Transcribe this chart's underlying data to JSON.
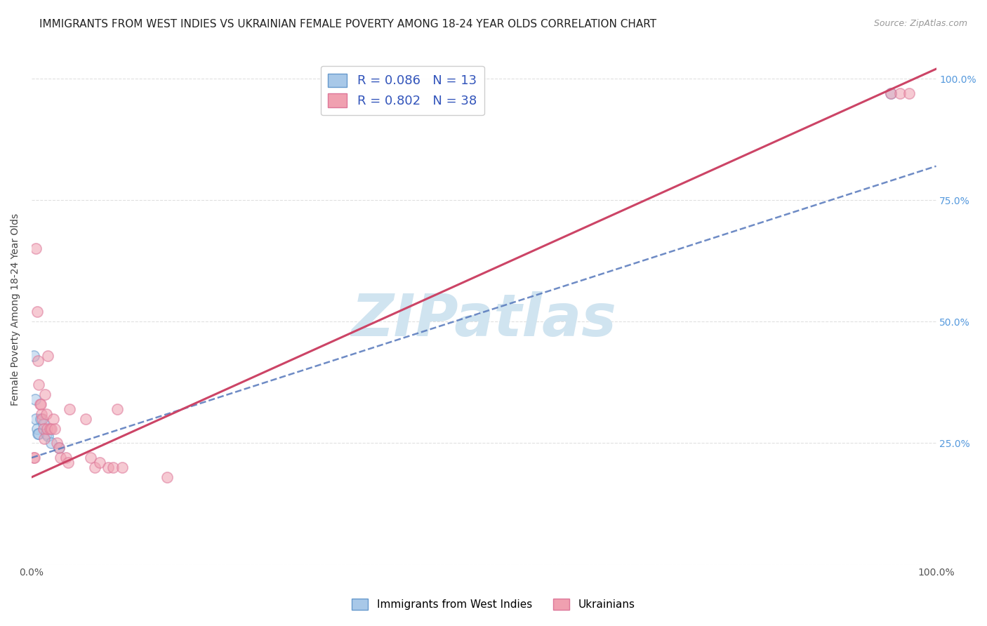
{
  "title": "IMMIGRANTS FROM WEST INDIES VS UKRAINIAN FEMALE POVERTY AMONG 18-24 YEAR OLDS CORRELATION CHART",
  "source": "Source: ZipAtlas.com",
  "ylabel": "Female Poverty Among 18-24 Year Olds",
  "legend_blue_r": "R = 0.086",
  "legend_blue_n": "N = 13",
  "legend_pink_r": "R = 0.802",
  "legend_pink_n": "N = 38",
  "legend_blue_label": "Immigrants from West Indies",
  "legend_pink_label": "Ukrainians",
  "watermark": "ZIPatlas",
  "blue_scatter_x": [
    0.002,
    0.004,
    0.005,
    0.006,
    0.007,
    0.008,
    0.01,
    0.013,
    0.016,
    0.018,
    0.022,
    0.03,
    0.95
  ],
  "blue_scatter_y": [
    0.43,
    0.34,
    0.3,
    0.28,
    0.27,
    0.27,
    0.3,
    0.29,
    0.27,
    0.265,
    0.25,
    0.24,
    0.97
  ],
  "pink_scatter_x": [
    0.002,
    0.003,
    0.005,
    0.006,
    0.007,
    0.008,
    0.009,
    0.01,
    0.011,
    0.012,
    0.013,
    0.014,
    0.015,
    0.016,
    0.017,
    0.018,
    0.02,
    0.022,
    0.024,
    0.026,
    0.028,
    0.03,
    0.032,
    0.038,
    0.04,
    0.042,
    0.06,
    0.065,
    0.07,
    0.075,
    0.085,
    0.09,
    0.095,
    0.1,
    0.15,
    0.95,
    0.96,
    0.97
  ],
  "pink_scatter_y": [
    0.22,
    0.22,
    0.65,
    0.52,
    0.42,
    0.37,
    0.33,
    0.33,
    0.31,
    0.3,
    0.28,
    0.26,
    0.35,
    0.31,
    0.28,
    0.43,
    0.28,
    0.28,
    0.3,
    0.28,
    0.25,
    0.24,
    0.22,
    0.22,
    0.21,
    0.32,
    0.3,
    0.22,
    0.2,
    0.21,
    0.2,
    0.2,
    0.32,
    0.2,
    0.18,
    0.97,
    0.97,
    0.97
  ],
  "blue_color": "#A8C8E8",
  "pink_color": "#F0A0B0",
  "blue_edge_color": "#6699CC",
  "pink_edge_color": "#DD7799",
  "blue_line_color": "#5577BB",
  "pink_line_color": "#CC4466",
  "grid_color": "#DDDDDD",
  "background_color": "#FFFFFF",
  "title_fontsize": 11,
  "axis_label_fontsize": 10,
  "legend_fontsize": 13,
  "watermark_fontsize": 60,
  "watermark_color": "#D0E4F0",
  "scatter_size": 120,
  "scatter_alpha": 0.55,
  "blue_line_x0": 0.0,
  "blue_line_y0": 0.22,
  "blue_line_x1": 1.0,
  "blue_line_y1": 0.82,
  "pink_line_x0": 0.0,
  "pink_line_y0": 0.18,
  "pink_line_x1": 1.0,
  "pink_line_y1": 1.02,
  "xlim": [
    0,
    1.0
  ],
  "ylim": [
    0,
    1.05
  ]
}
